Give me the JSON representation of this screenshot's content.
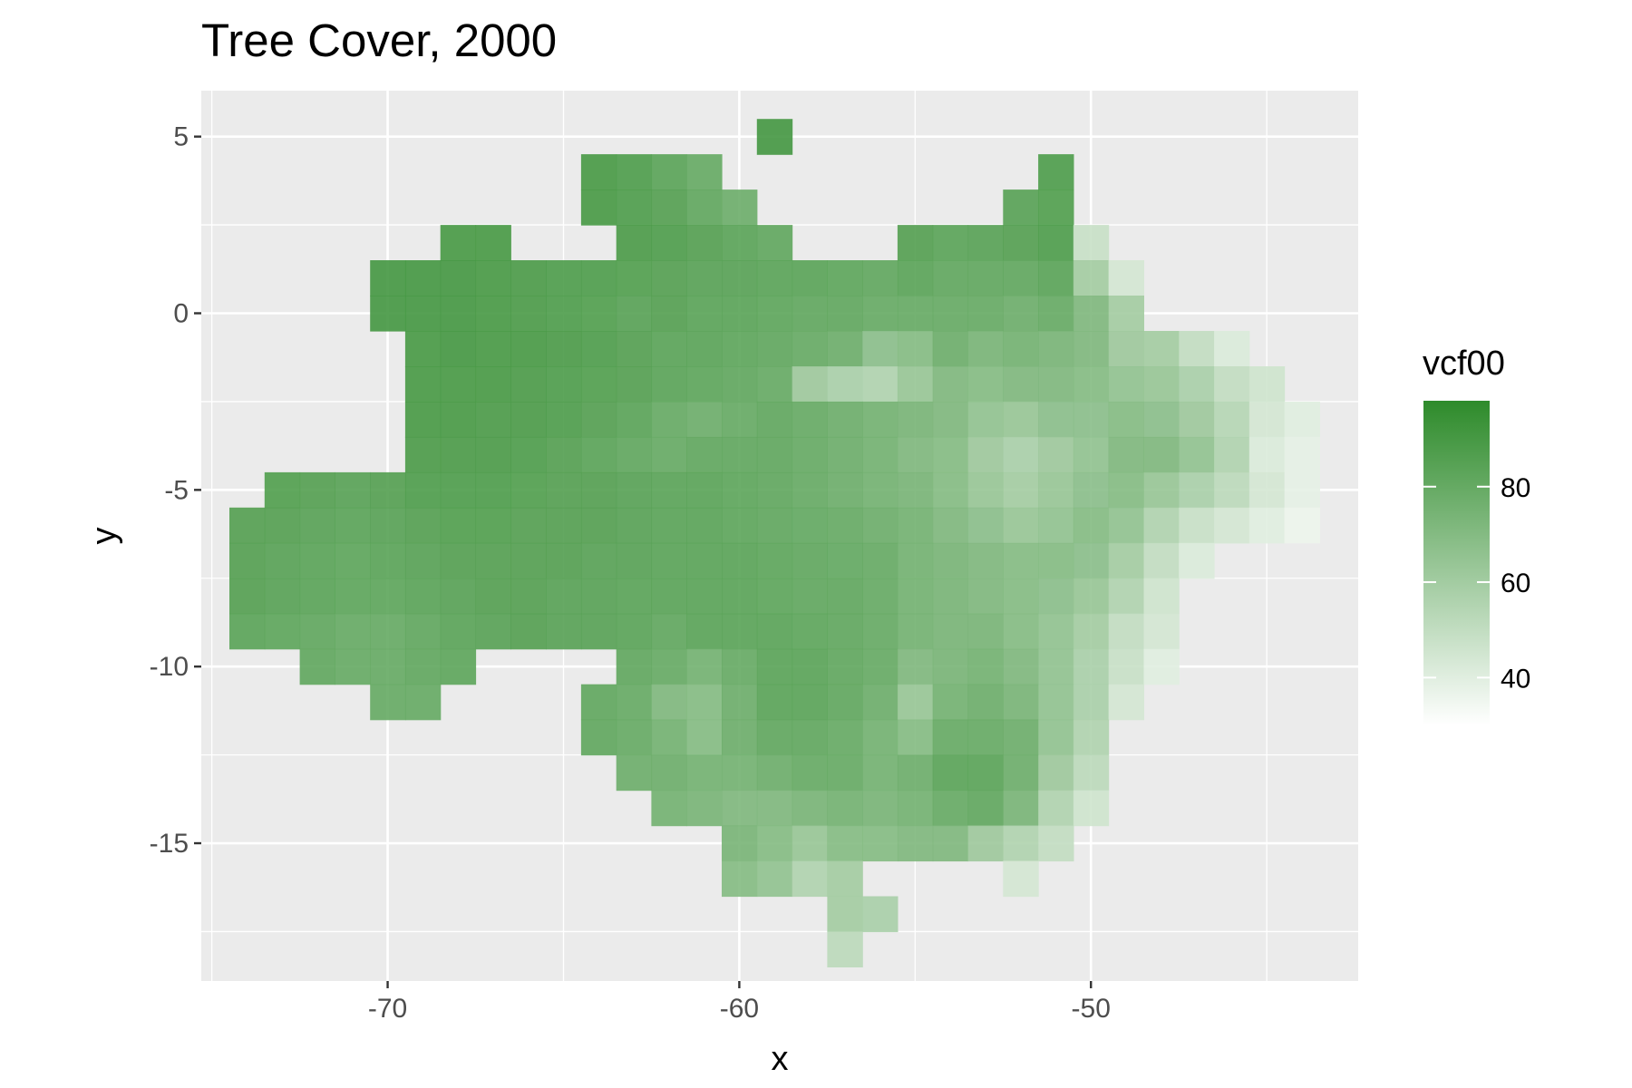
{
  "chart_data": {
    "type": "scatter",
    "title": "Tree Cover, 2000",
    "xlabel": "x",
    "ylabel": "y",
    "xlim": [
      -75.3,
      -42.4
    ],
    "ylim": [
      -18.9,
      6.3
    ],
    "x_ticks": [
      -70,
      -60,
      -50
    ],
    "x_tick_labels": [
      "-70",
      "-60",
      "-50"
    ],
    "y_ticks": [
      5,
      0,
      -5,
      -10,
      -15
    ],
    "y_tick_labels": [
      "5",
      "0",
      "-5",
      "-10",
      "-15"
    ],
    "grid": true,
    "panel_background": "#ebebeb",
    "legend": {
      "title": "vcf00",
      "position": "right",
      "ticks": [
        80,
        60,
        40
      ],
      "tick_labels": [
        "80",
        "60",
        "40"
      ],
      "range": [
        30,
        98
      ],
      "colors": {
        "high": "#2e8b2b",
        "low": "#ffffff"
      }
    },
    "x": [
      -74.0,
      -73.0,
      -72.0,
      -71.0,
      -70.0,
      -69.0,
      -68.0,
      -67.0,
      -66.0,
      -65.0,
      -64.0,
      -63.0,
      -62.0,
      -61.0,
      -60.0,
      -59.0,
      -58.0,
      -57.0,
      -56.0,
      -55.0,
      -54.0,
      -53.0,
      -52.0,
      -51.0,
      -50.0,
      -49.0,
      -48.0,
      -47.0,
      -46.0,
      -45.0,
      -44.0
    ],
    "y": [
      5,
      4,
      3,
      2,
      1,
      0,
      -1,
      -2,
      -3,
      -4,
      -5,
      -6,
      -7,
      -8,
      -9,
      -10,
      -11,
      -12,
      -13,
      -14,
      -15,
      -16,
      -17,
      -18
    ],
    "values": [
      [
        30,
        30,
        30,
        30,
        30,
        30,
        30,
        30,
        30,
        30,
        30,
        30,
        30,
        30,
        30,
        91,
        30,
        30,
        30,
        30,
        30,
        30,
        30,
        30,
        30,
        30,
        30,
        30,
        30,
        30,
        30
      ],
      [
        30,
        30,
        30,
        30,
        30,
        30,
        30,
        30,
        30,
        30,
        90,
        88,
        84,
        80,
        30,
        30,
        30,
        30,
        30,
        30,
        30,
        30,
        30,
        88,
        30,
        30,
        30,
        30,
        30,
        30,
        30
      ],
      [
        30,
        30,
        30,
        30,
        30,
        30,
        30,
        30,
        30,
        30,
        90,
        88,
        86,
        82,
        78,
        30,
        30,
        30,
        30,
        30,
        30,
        30,
        85,
        87,
        30,
        30,
        30,
        30,
        30,
        30,
        30
      ],
      [
        30,
        30,
        30,
        30,
        30,
        30,
        90,
        90,
        30,
        30,
        30,
        89,
        88,
        86,
        84,
        82,
        30,
        30,
        30,
        86,
        84,
        85,
        86,
        88,
        48,
        30,
        30,
        30,
        30,
        30,
        30
      ],
      [
        30,
        30,
        30,
        30,
        91,
        91,
        91,
        90,
        89,
        88,
        88,
        87,
        86,
        85,
        85,
        84,
        84,
        83,
        82,
        84,
        82,
        82,
        82,
        84,
        60,
        44,
        30,
        30,
        30,
        30,
        30
      ],
      [
        30,
        30,
        30,
        30,
        91,
        91,
        91,
        90,
        89,
        88,
        87,
        85,
        86,
        84,
        84,
        83,
        82,
        82,
        80,
        80,
        80,
        80,
        78,
        80,
        72,
        60,
        30,
        30,
        30,
        30,
        30
      ],
      [
        30,
        30,
        30,
        30,
        30,
        90,
        91,
        90,
        90,
        89,
        88,
        86,
        84,
        84,
        83,
        82,
        80,
        78,
        68,
        70,
        78,
        74,
        76,
        74,
        72,
        62,
        60,
        50,
        42,
        30,
        30
      ],
      [
        30,
        30,
        30,
        30,
        30,
        90,
        90,
        90,
        89,
        88,
        87,
        86,
        84,
        83,
        82,
        80,
        62,
        58,
        56,
        64,
        72,
        70,
        72,
        72,
        70,
        66,
        64,
        58,
        50,
        46,
        30
      ],
      [
        30,
        30,
        30,
        30,
        30,
        90,
        90,
        89,
        89,
        88,
        86,
        84,
        80,
        78,
        80,
        82,
        80,
        78,
        76,
        74,
        72,
        66,
        64,
        68,
        68,
        70,
        68,
        62,
        54,
        44,
        40
      ],
      [
        30,
        30,
        30,
        30,
        30,
        89,
        89,
        89,
        88,
        86,
        84,
        82,
        80,
        82,
        82,
        82,
        80,
        78,
        76,
        72,
        70,
        62,
        58,
        62,
        66,
        72,
        72,
        66,
        56,
        42,
        38
      ],
      [
        30,
        87,
        86,
        85,
        86,
        88,
        88,
        88,
        87,
        86,
        86,
        85,
        84,
        84,
        83,
        82,
        80,
        78,
        76,
        74,
        70,
        64,
        60,
        64,
        68,
        70,
        64,
        58,
        52,
        44,
        38
      ],
      [
        86,
        86,
        85,
        84,
        85,
        86,
        87,
        87,
        86,
        86,
        86,
        85,
        84,
        84,
        83,
        82,
        81,
        80,
        78,
        76,
        72,
        68,
        64,
        66,
        70,
        66,
        56,
        48,
        44,
        40,
        36
      ],
      [
        86,
        85,
        84,
        83,
        84,
        85,
        86,
        86,
        86,
        86,
        85,
        85,
        84,
        84,
        84,
        83,
        82,
        81,
        80,
        76,
        74,
        72,
        70,
        70,
        68,
        60,
        50,
        42,
        30,
        30,
        30
      ],
      [
        86,
        85,
        84,
        83,
        83,
        84,
        85,
        86,
        86,
        85,
        85,
        84,
        84,
        84,
        84,
        83,
        82,
        82,
        80,
        76,
        74,
        72,
        70,
        68,
        64,
        56,
        46,
        30,
        30,
        30,
        30
      ],
      [
        84,
        83,
        82,
        80,
        80,
        82,
        84,
        85,
        86,
        85,
        85,
        84,
        82,
        84,
        84,
        84,
        83,
        82,
        80,
        76,
        74,
        74,
        70,
        66,
        60,
        50,
        44,
        30,
        30,
        30,
        30
      ],
      [
        30,
        30,
        82,
        80,
        80,
        82,
        83,
        30,
        30,
        30,
        30,
        82,
        80,
        76,
        80,
        84,
        84,
        82,
        80,
        72,
        74,
        76,
        72,
        66,
        58,
        48,
        40,
        30,
        30,
        30,
        30
      ],
      [
        30,
        30,
        30,
        30,
        80,
        80,
        30,
        30,
        30,
        30,
        82,
        80,
        72,
        70,
        78,
        84,
        84,
        82,
        78,
        64,
        76,
        78,
        74,
        66,
        58,
        44,
        30,
        30,
        30,
        30,
        30
      ],
      [
        30,
        30,
        30,
        30,
        30,
        30,
        30,
        30,
        30,
        30,
        82,
        80,
        76,
        70,
        78,
        82,
        82,
        80,
        76,
        70,
        80,
        80,
        78,
        66,
        56,
        30,
        30,
        30,
        30,
        30,
        30
      ],
      [
        30,
        30,
        30,
        30,
        30,
        30,
        30,
        30,
        30,
        30,
        30,
        78,
        78,
        76,
        76,
        78,
        80,
        80,
        76,
        78,
        84,
        84,
        78,
        62,
        52,
        30,
        30,
        30,
        30,
        30,
        30
      ],
      [
        30,
        30,
        30,
        30,
        30,
        30,
        30,
        30,
        30,
        30,
        30,
        30,
        76,
        74,
        72,
        72,
        74,
        76,
        74,
        76,
        80,
        82,
        74,
        56,
        46,
        30,
        30,
        30,
        30,
        30,
        30
      ],
      [
        30,
        30,
        30,
        30,
        30,
        30,
        30,
        30,
        30,
        30,
        30,
        30,
        30,
        30,
        74,
        70,
        64,
        70,
        70,
        72,
        72,
        62,
        56,
        50,
        30,
        30,
        30,
        30,
        30,
        30,
        30
      ],
      [
        30,
        30,
        30,
        30,
        30,
        30,
        30,
        30,
        30,
        30,
        30,
        30,
        30,
        30,
        70,
        66,
        56,
        60,
        30,
        30,
        30,
        30,
        44,
        30,
        30,
        30,
        30,
        30,
        30,
        30,
        30
      ],
      [
        30,
        30,
        30,
        30,
        30,
        30,
        30,
        30,
        30,
        30,
        30,
        30,
        30,
        30,
        30,
        30,
        30,
        60,
        58,
        30,
        30,
        30,
        30,
        30,
        30,
        30,
        30,
        30,
        30,
        30,
        30
      ],
      [
        30,
        30,
        30,
        30,
        30,
        30,
        30,
        30,
        30,
        30,
        30,
        30,
        30,
        30,
        30,
        30,
        30,
        52,
        30,
        30,
        30,
        30,
        30,
        30,
        30,
        30,
        30,
        30,
        30,
        30,
        30
      ]
    ]
  }
}
